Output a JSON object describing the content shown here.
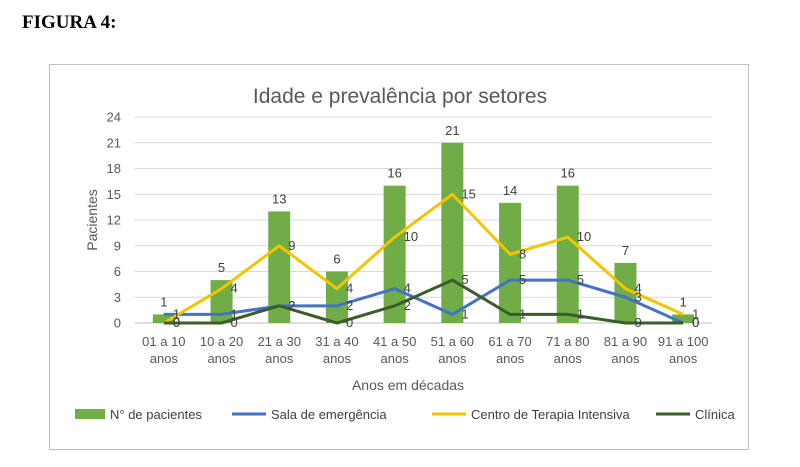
{
  "figure_label": "FIGURA 4:",
  "chart_data": {
    "type": "bar",
    "title": "Idade e prevalência por setores",
    "xlabel": "Anos em décadas",
    "ylabel": "Pacientes",
    "ylim": [
      0,
      24
    ],
    "yticks": [
      0,
      3,
      6,
      9,
      12,
      15,
      18,
      21,
      24
    ],
    "grid": true,
    "legend_position": "bottom",
    "categories": [
      [
        "01 a 10",
        "anos"
      ],
      [
        "10 a 20",
        "anos"
      ],
      [
        "21 a 30",
        "anos"
      ],
      [
        "31 a 40",
        "anos"
      ],
      [
        "41 a 50",
        "anos"
      ],
      [
        "51 a 60",
        "anos"
      ],
      [
        "61 a 70",
        "anos"
      ],
      [
        "71 a 80",
        "anos"
      ],
      [
        "81 a 90",
        "anos"
      ],
      [
        "91 a 100",
        "anos"
      ]
    ],
    "series": [
      {
        "name": "N° de pacientes",
        "kind": "bar",
        "color": "#70ad47",
        "values": [
          1,
          5,
          13,
          6,
          16,
          21,
          14,
          16,
          7,
          1
        ]
      },
      {
        "name": "Sala de emergência",
        "kind": "line",
        "color": "#4472c4",
        "values": [
          1,
          1,
          2,
          2,
          4,
          1,
          5,
          5,
          3,
          0
        ]
      },
      {
        "name": "Centro de Terapia Intensiva",
        "kind": "line",
        "color": "#f2c500",
        "values": [
          0,
          4,
          9,
          4,
          10,
          15,
          8,
          10,
          4,
          1
        ]
      },
      {
        "name": "Clínica",
        "kind": "line",
        "color": "#3a5e2a",
        "values": [
          0,
          0,
          2,
          0,
          2,
          5,
          1,
          1,
          0,
          0
        ]
      }
    ]
  }
}
